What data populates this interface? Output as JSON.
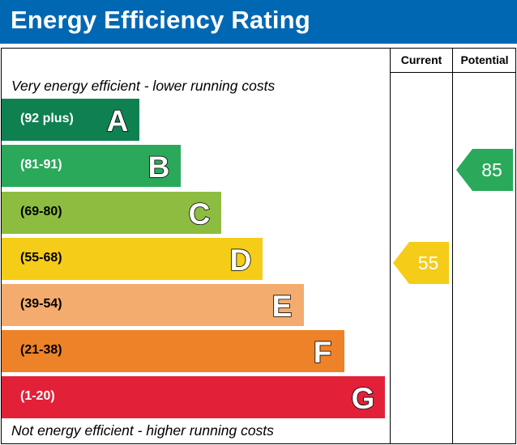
{
  "header": {
    "title": "Energy Efficiency Rating",
    "bg": "#0068b3"
  },
  "columns": {
    "current": "Current",
    "potential": "Potential"
  },
  "notes": {
    "top": "Very energy efficient - lower running costs",
    "bottom": "Not energy efficient - higher running costs"
  },
  "chart_data": {
    "type": "bar",
    "categories": [
      "A",
      "B",
      "C",
      "D",
      "E",
      "F",
      "G"
    ],
    "ranges": [
      "(92 plus)",
      "(81-91)",
      "(69-80)",
      "(55-68)",
      "(39-54)",
      "(21-38)",
      "(1-20)"
    ],
    "colors": [
      "#0f8150",
      "#2aa95b",
      "#8dbd40",
      "#f5cc18",
      "#f3ac6d",
      "#ee8228",
      "#e22139"
    ],
    "range_text_colors": [
      "#ffffff",
      "#ffffff",
      "#000000",
      "#000000",
      "#000000",
      "#000000",
      "#ffffff"
    ],
    "current": {
      "value": 55,
      "band": "D",
      "color": "#f5cc18"
    },
    "potential": {
      "value": 85,
      "band": "B",
      "color": "#2aa95b"
    }
  }
}
